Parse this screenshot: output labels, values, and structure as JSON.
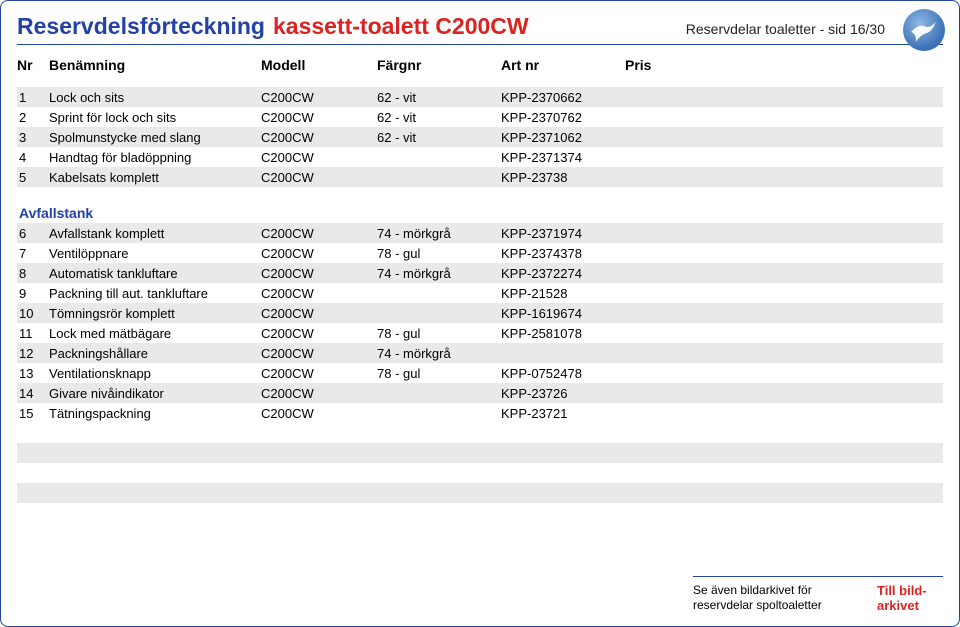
{
  "header": {
    "title_main": "Reservdelsförteckning",
    "title_accent": "kassett-toalett C200CW",
    "page_label": "Reservdelar toaletter - sid 16/30"
  },
  "columns": {
    "nr": "Nr",
    "name": "Benämning",
    "model": "Modell",
    "color": "Färgnr",
    "art": "Art nr",
    "price": "Pris"
  },
  "sections": [
    {
      "heading": null,
      "rows": [
        {
          "nr": "1",
          "name": "Lock och sits",
          "model": "C200CW",
          "color": "62 - vit",
          "art": "KPP-2370662",
          "price": ""
        },
        {
          "nr": "2",
          "name": "Sprint för lock och sits",
          "model": "C200CW",
          "color": "62 - vit",
          "art": "KPP-2370762",
          "price": ""
        },
        {
          "nr": "3",
          "name": "Spolmunstycke med slang",
          "model": "C200CW",
          "color": "62 - vit",
          "art": "KPP-2371062",
          "price": ""
        },
        {
          "nr": "4",
          "name": "Handtag för bladöppning",
          "model": "C200CW",
          "color": "",
          "art": "KPP-2371374",
          "price": ""
        },
        {
          "nr": "5",
          "name": "Kabelsats komplett",
          "model": "C200CW",
          "color": "",
          "art": "KPP-23738",
          "price": ""
        }
      ]
    },
    {
      "heading": "Avfallstank",
      "rows": [
        {
          "nr": "6",
          "name": "Avfallstank komplett",
          "model": "C200CW",
          "color": "74 - mörkgrå",
          "art": "KPP-2371974",
          "price": ""
        },
        {
          "nr": "7",
          "name": "Ventilöppnare",
          "model": "C200CW",
          "color": "78 - gul",
          "art": "KPP-2374378",
          "price": ""
        },
        {
          "nr": "8",
          "name": "Automatisk tankluftare",
          "model": "C200CW",
          "color": "74 - mörkgrå",
          "art": "KPP-2372274",
          "price": ""
        },
        {
          "nr": "9",
          "name": "Packning till aut. tankluftare",
          "model": "C200CW",
          "color": "",
          "art": "KPP-21528",
          "price": ""
        },
        {
          "nr": "10",
          "name": "Tömningsrör komplett",
          "model": "C200CW",
          "color": "",
          "art": "KPP-1619674",
          "price": ""
        },
        {
          "nr": "11",
          "name": "Lock med mätbägare",
          "model": "C200CW",
          "color": "78 - gul",
          "art": "KPP-2581078",
          "price": ""
        },
        {
          "nr": "12",
          "name": "Packningshållare",
          "model": "C200CW",
          "color": "74 - mörkgrå",
          "art": "",
          "price": ""
        },
        {
          "nr": "13",
          "name": "Ventilationsknapp",
          "model": "C200CW",
          "color": "78 - gul",
          "art": "KPP-0752478",
          "price": ""
        },
        {
          "nr": "14",
          "name": "Givare nivåindikator",
          "model": "C200CW",
          "color": "",
          "art": "KPP-23726",
          "price": ""
        },
        {
          "nr": "15",
          "name": "Tätningspackning",
          "model": "C200CW",
          "color": "",
          "art": "KPP-23721",
          "price": ""
        }
      ]
    }
  ],
  "trailing_stripe_rows": 4,
  "footer": {
    "note_line1": "Se även bildarkivet för",
    "note_line2": "reservdelar spoltoaletter",
    "link_line1": "Till bild-",
    "link_line2": "arkivet"
  },
  "colors": {
    "accent_blue": "#2342a4",
    "accent_red": "#d22",
    "stripe": "#e9e9e9"
  }
}
